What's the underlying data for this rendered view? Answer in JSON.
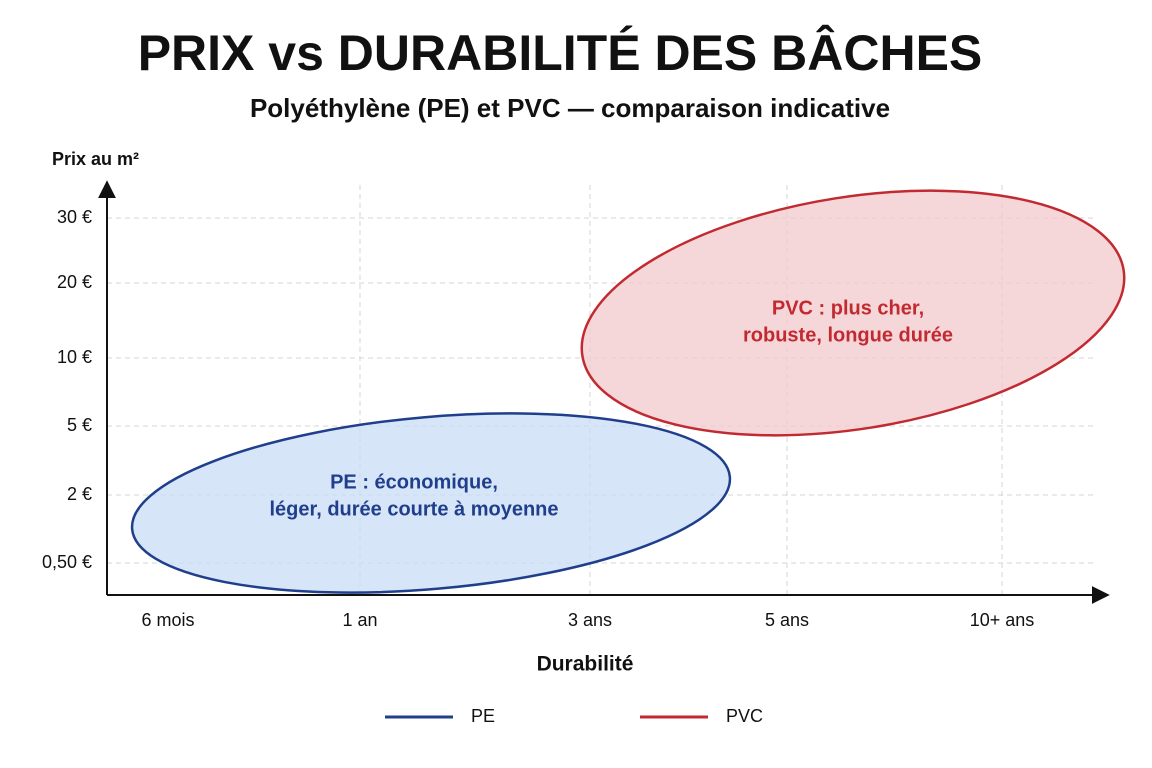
{
  "chart_data": {
    "type": "region",
    "title": "PRIX vs DURABILITÉ DES BÂCHES",
    "subtitle": "Polyéthylène (PE) et PVC — comparaison indicative",
    "y_label": "Prix au m²",
    "x_label": "Durabilité",
    "categories": [
      "6 mois",
      "1 an",
      "3 ans",
      "5 ans",
      "10+ ans"
    ],
    "y_categories": [
      "0,50 €",
      "2 €",
      "5 €",
      "10 €",
      "20 €",
      "30 €"
    ],
    "grid": true,
    "series": [
      {
        "name": "PE",
        "color": "#1f3f8c",
        "fill": "#c9dcf5",
        "label": [
          "PE : économique,",
          "léger, durée courte à moyenne"
        ]
      },
      {
        "name": "PVC",
        "color": "#c22a31",
        "fill": "#f3c9cc",
        "label": [
          "PVC : plus cher,",
          "robuste, longue durée"
        ]
      }
    ]
  }
}
